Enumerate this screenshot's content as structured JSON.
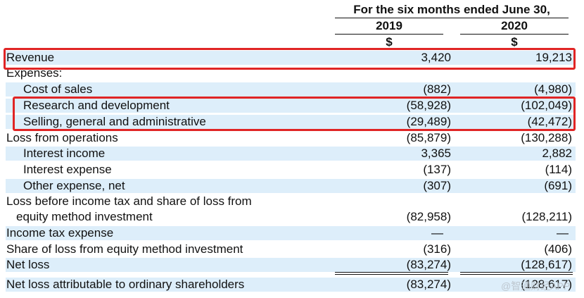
{
  "header": {
    "period": "For the six months ended June 30,",
    "year_2019": "2019",
    "year_2020": "2020",
    "currency_2019": "$",
    "currency_2020": "$"
  },
  "rows": [
    {
      "label": "Revenue",
      "v2019": "3,420",
      "v2020": "19,213"
    },
    {
      "label": "Expenses:",
      "v2019": "",
      "v2020": ""
    },
    {
      "label": "Cost of sales",
      "v2019": "(882)",
      "v2020": "(4,980)"
    },
    {
      "label": "Research and development",
      "v2019": "(58,928)",
      "v2020": "(102,049)"
    },
    {
      "label": "Selling, general and administrative",
      "v2019": "(29,489)",
      "v2020": "(42,472)"
    },
    {
      "label": "Loss from operations",
      "v2019": "(85,879)",
      "v2020": "(130,288)"
    },
    {
      "label": "Interest income",
      "v2019": "3,365",
      "v2020": "2,882"
    },
    {
      "label": "Interest expense",
      "v2019": "(137)",
      "v2020": "(114)"
    },
    {
      "label": "Other expense, net",
      "v2019": "(307)",
      "v2020": "(691)"
    },
    {
      "label": "Loss before income tax and share of loss from",
      "v2019": "",
      "v2020": ""
    },
    {
      "label": "equity method investment",
      "v2019": "(82,958)",
      "v2020": "(128,211)"
    },
    {
      "label": "Income tax expense",
      "v2019": "—",
      "v2020": "—"
    },
    {
      "label": "Share of loss from equity method investment",
      "v2019": "(316)",
      "v2020": "(406)"
    },
    {
      "label": "Net loss",
      "v2019": "(83,274)",
      "v2020": "(128,617)"
    },
    {
      "label": "Net loss attributable to ordinary shareholders",
      "v2019": "(83,274)",
      "v2020": "(128,617)"
    }
  ],
  "watermark": "@智通财经APP",
  "colors": {
    "row_shade": "#ddeefa",
    "highlight_border": "#e02525"
  }
}
